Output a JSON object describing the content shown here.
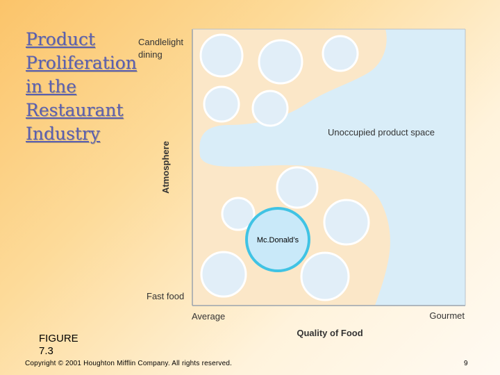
{
  "slide": {
    "title_lines": [
      "Product",
      "Proliferation",
      "in the",
      "Restaurant",
      "Industry"
    ],
    "figure_label": "FIGURE 7.3",
    "copyright": "Copyright © 2001 Houghton Mifflin Company. All rights reserved.",
    "page_number": "9"
  },
  "diagram": {
    "y_axis_label": "Atmosphere",
    "x_axis_label": "Quality of Food",
    "y_top_label": [
      "Candlelight",
      "dining"
    ],
    "y_bottom_label": "Fast food",
    "x_left_label": "Average",
    "x_right_label": "Gourmet",
    "region_label": "Unoccupied product space",
    "highlight_label": "Mc.Donald’s",
    "colors": {
      "occupied": "#fbe7c8",
      "unoccupied": "#d9edf8",
      "circle_fill": "#e1eef8",
      "circle_stroke": "#ffffff",
      "highlight_fill": "#c9e9f9",
      "highlight_stroke": "#40c3e4",
      "frame": "#9aa3ad"
    }
  }
}
